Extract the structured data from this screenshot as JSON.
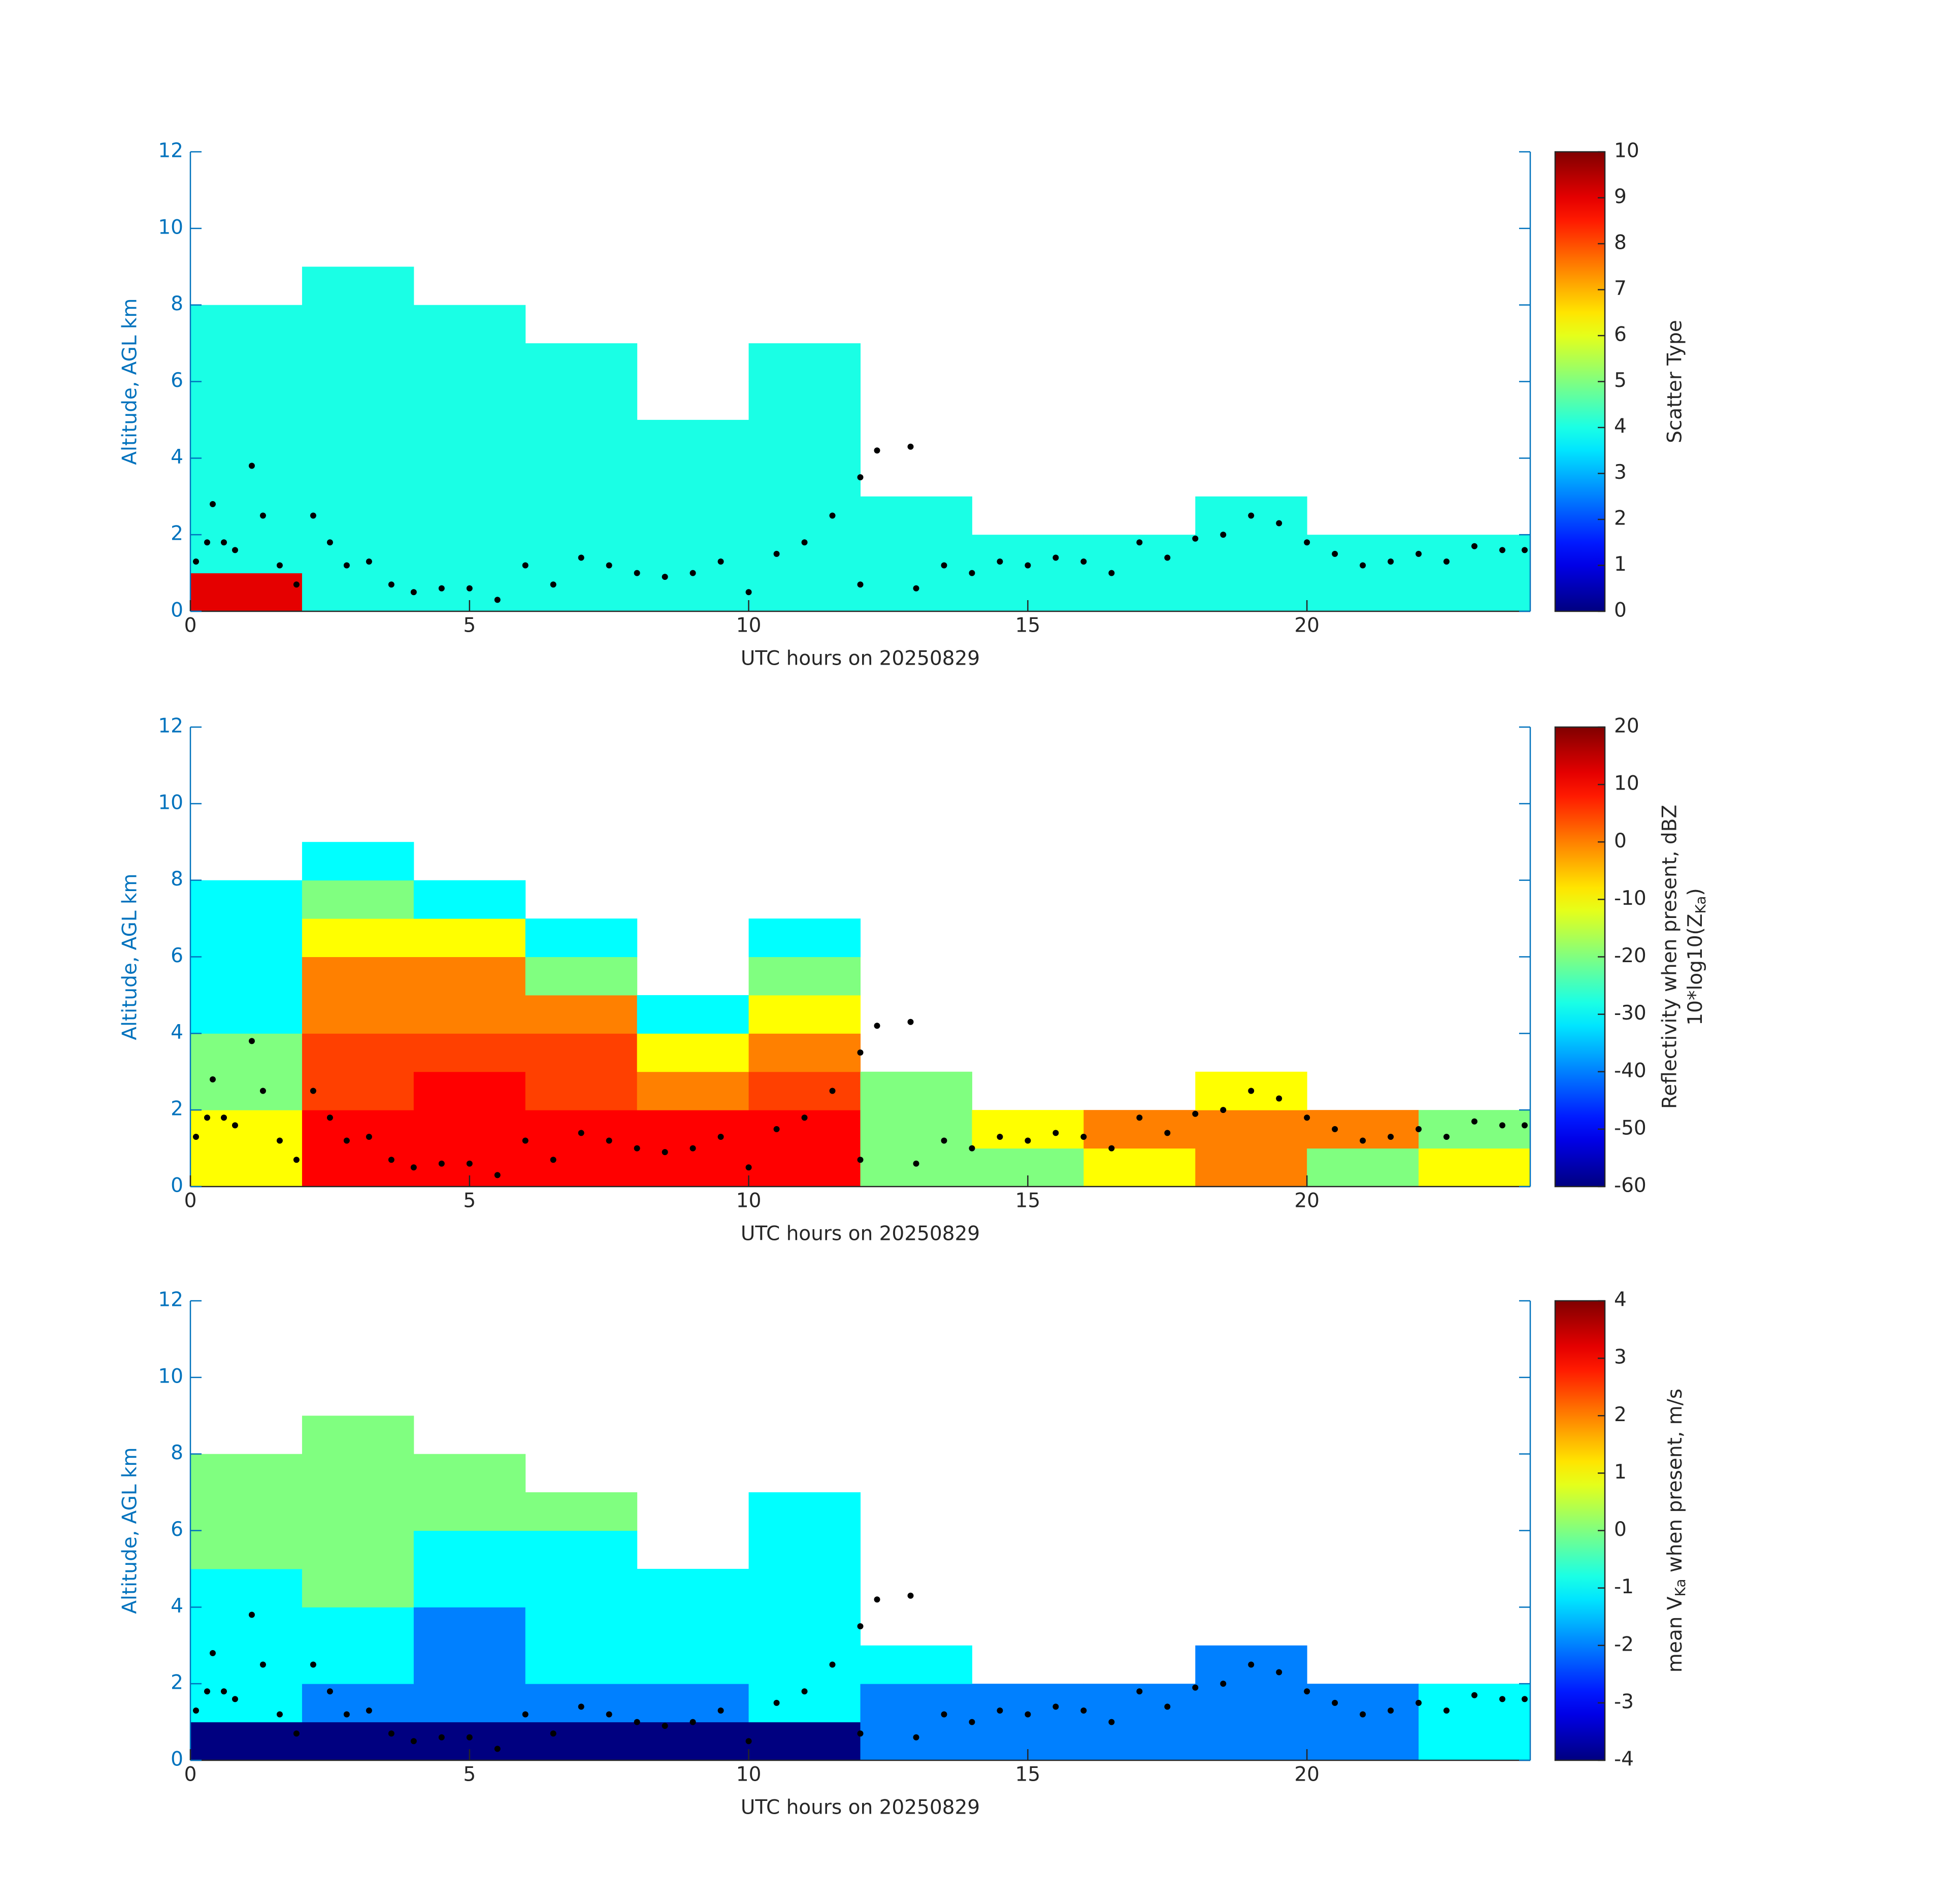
{
  "chart_data": [
    {
      "type": "heatmap",
      "xlabel": "UTC hours on 20250829",
      "ylabel": "Altitude, AGL km",
      "xlim": [
        0,
        24
      ],
      "xticks": [
        0,
        5,
        10,
        15,
        20
      ],
      "ylim": [
        0,
        12
      ],
      "yticks": [
        0,
        2,
        4,
        6,
        8,
        10,
        12
      ],
      "xbins": [
        0,
        2,
        4,
        6,
        8,
        10,
        12,
        14,
        16,
        18,
        20,
        22,
        24
      ],
      "ybins": [
        0,
        1,
        2,
        3,
        4,
        5,
        6,
        7,
        8,
        9
      ],
      "values": [
        [
          9,
          4,
          4,
          4,
          4,
          4,
          4,
          4,
          4,
          4,
          4,
          4
        ],
        [
          4,
          4,
          4,
          4,
          4,
          4,
          4,
          4,
          4,
          4,
          4,
          4
        ],
        [
          4,
          4,
          4,
          4,
          4,
          4,
          4,
          null,
          null,
          4,
          null,
          null
        ],
        [
          4,
          4,
          4,
          4,
          4,
          4,
          null,
          null,
          null,
          null,
          null,
          null
        ],
        [
          4,
          4,
          4,
          4,
          4,
          4,
          null,
          null,
          null,
          null,
          null,
          null
        ],
        [
          4,
          4,
          4,
          4,
          null,
          4,
          null,
          null,
          null,
          null,
          null,
          null
        ],
        [
          4,
          4,
          4,
          4,
          null,
          4,
          null,
          null,
          null,
          null,
          null,
          null
        ],
        [
          4,
          4,
          4,
          null,
          null,
          null,
          null,
          null,
          null,
          null,
          null,
          null
        ],
        [
          null,
          4,
          null,
          null,
          null,
          null,
          null,
          null,
          null,
          null,
          null,
          null
        ]
      ],
      "clim": [
        0,
        10
      ],
      "cticks": [
        0,
        1,
        2,
        3,
        4,
        5,
        6,
        7,
        8,
        9,
        10
      ],
      "colorbar_label": "Scatter Type"
    },
    {
      "type": "heatmap",
      "xlabel": "UTC hours on 20250829",
      "ylabel": "Altitude, AGL km",
      "xlim": [
        0,
        24
      ],
      "xticks": [
        0,
        5,
        10,
        15,
        20
      ],
      "ylim": [
        0,
        12
      ],
      "yticks": [
        0,
        2,
        4,
        6,
        8,
        10,
        12
      ],
      "xbins": [
        0,
        2,
        4,
        6,
        8,
        10,
        12,
        14,
        16,
        18,
        20,
        22,
        24
      ],
      "ybins": [
        0,
        1,
        2,
        3,
        4,
        5,
        6,
        7,
        8,
        9
      ],
      "values": [
        [
          -10,
          10,
          10,
          10,
          10,
          10,
          -20,
          -20,
          -10,
          0,
          -20,
          -10
        ],
        [
          -10,
          10,
          10,
          10,
          10,
          10,
          -20,
          -10,
          0,
          0,
          0,
          -20
        ],
        [
          -20,
          5,
          10,
          5,
          0,
          5,
          -20,
          null,
          null,
          -10,
          null,
          null
        ],
        [
          -20,
          5,
          5,
          5,
          -10,
          0,
          null,
          null,
          null,
          null,
          null,
          null
        ],
        [
          -30,
          0,
          0,
          0,
          -30,
          -10,
          null,
          null,
          null,
          null,
          null,
          null
        ],
        [
          -30,
          0,
          0,
          -20,
          null,
          -20,
          null,
          null,
          null,
          null,
          null,
          null
        ],
        [
          -30,
          -10,
          -10,
          -30,
          null,
          -30,
          null,
          null,
          null,
          null,
          null,
          null
        ],
        [
          -30,
          -20,
          -30,
          null,
          null,
          null,
          null,
          null,
          null,
          null,
          null,
          null
        ],
        [
          null,
          -30,
          null,
          null,
          null,
          null,
          null,
          null,
          null,
          null,
          null,
          null
        ]
      ],
      "clim": [
        -60,
        20
      ],
      "cticks": [
        -60,
        -50,
        -40,
        -30,
        -20,
        -10,
        0,
        10,
        20
      ],
      "colorbar_label": "Reflectivity when present, dBZ",
      "colorbar_label2": {
        "text": "10*log10(Z",
        "sub": "Ka",
        "end": ")"
      }
    },
    {
      "type": "heatmap",
      "xlabel": "UTC hours on 20250829",
      "ylabel": "Altitude, AGL km",
      "xlim": [
        0,
        24
      ],
      "xticks": [
        0,
        5,
        10,
        15,
        20
      ],
      "ylim": [
        0,
        12
      ],
      "yticks": [
        0,
        2,
        4,
        6,
        8,
        10,
        12
      ],
      "xbins": [
        0,
        2,
        4,
        6,
        8,
        10,
        12,
        14,
        16,
        18,
        20,
        22,
        24
      ],
      "ybins": [
        0,
        1,
        2,
        3,
        4,
        5,
        6,
        7,
        8,
        9
      ],
      "values": [
        [
          -4,
          -4,
          -4,
          -4,
          -4,
          -4,
          -2,
          -2,
          -2,
          -2,
          -2,
          -1
        ],
        [
          -1,
          -2,
          -2,
          -2,
          -2,
          -1,
          -2,
          -2,
          -2,
          -2,
          -2,
          -1
        ],
        [
          -1,
          -1,
          -2,
          -1,
          -1,
          -1,
          -1,
          null,
          null,
          -2,
          null,
          null
        ],
        [
          -1,
          -1,
          -2,
          -1,
          -1,
          -1,
          null,
          null,
          null,
          null,
          null,
          null
        ],
        [
          -1,
          0,
          -1,
          -1,
          -1,
          -1,
          null,
          null,
          null,
          null,
          null,
          null
        ],
        [
          0,
          0,
          -1,
          -1,
          null,
          -1,
          null,
          null,
          null,
          null,
          null,
          null
        ],
        [
          0,
          0,
          0,
          0,
          null,
          -1,
          null,
          null,
          null,
          null,
          null,
          null
        ],
        [
          0,
          0,
          0,
          null,
          null,
          null,
          null,
          null,
          null,
          null,
          null,
          null
        ],
        [
          null,
          0,
          null,
          null,
          null,
          null,
          null,
          null,
          null,
          null,
          null,
          null
        ]
      ],
      "clim": [
        -4,
        4
      ],
      "cticks": [
        -4,
        -3,
        -2,
        -1,
        0,
        1,
        2,
        3,
        4
      ],
      "colorbar_label": {
        "text": "mean V",
        "sub": "Ka",
        "end": " when present, m/s"
      }
    }
  ],
  "points": {
    "x": [
      0.1,
      0.3,
      0.4,
      0.6,
      0.8,
      1.1,
      1.3,
      1.6,
      1.9,
      2.2,
      2.5,
      2.8,
      3.2,
      3.6,
      4,
      4.5,
      5,
      5.5,
      6,
      6.5,
      7,
      7.5,
      8,
      8.5,
      9,
      9.5,
      10,
      10.5,
      11,
      11.5,
      12,
      12.3,
      12.9,
      12,
      13,
      13.5,
      14,
      14.5,
      15,
      15.5,
      16,
      16.5,
      17,
      17.5,
      18,
      18.5,
      19,
      19.5,
      20,
      20.5,
      21,
      21.5,
      22,
      22.5,
      23,
      23.5,
      23.9
    ],
    "y": [
      1.3,
      1.8,
      2.8,
      1.8,
      1.6,
      3.8,
      2.5,
      1.2,
      0.7,
      2.5,
      1.8,
      1.2,
      1.3,
      0.7,
      0.5,
      0.6,
      0.6,
      0.3,
      1.2,
      0.7,
      1.4,
      1.2,
      1,
      0.9,
      1,
      1.3,
      0.5,
      1.5,
      1.8,
      2.5,
      3.5,
      4.2,
      4.3,
      0.7,
      0.6,
      1.2,
      1,
      1.3,
      1.2,
      1.4,
      1.3,
      1,
      1.8,
      1.4,
      1.9,
      2,
      2.5,
      2.3,
      1.8,
      1.5,
      1.2,
      1.3,
      1.5,
      1.3,
      1.7,
      1.6,
      1.6
    ]
  }
}
